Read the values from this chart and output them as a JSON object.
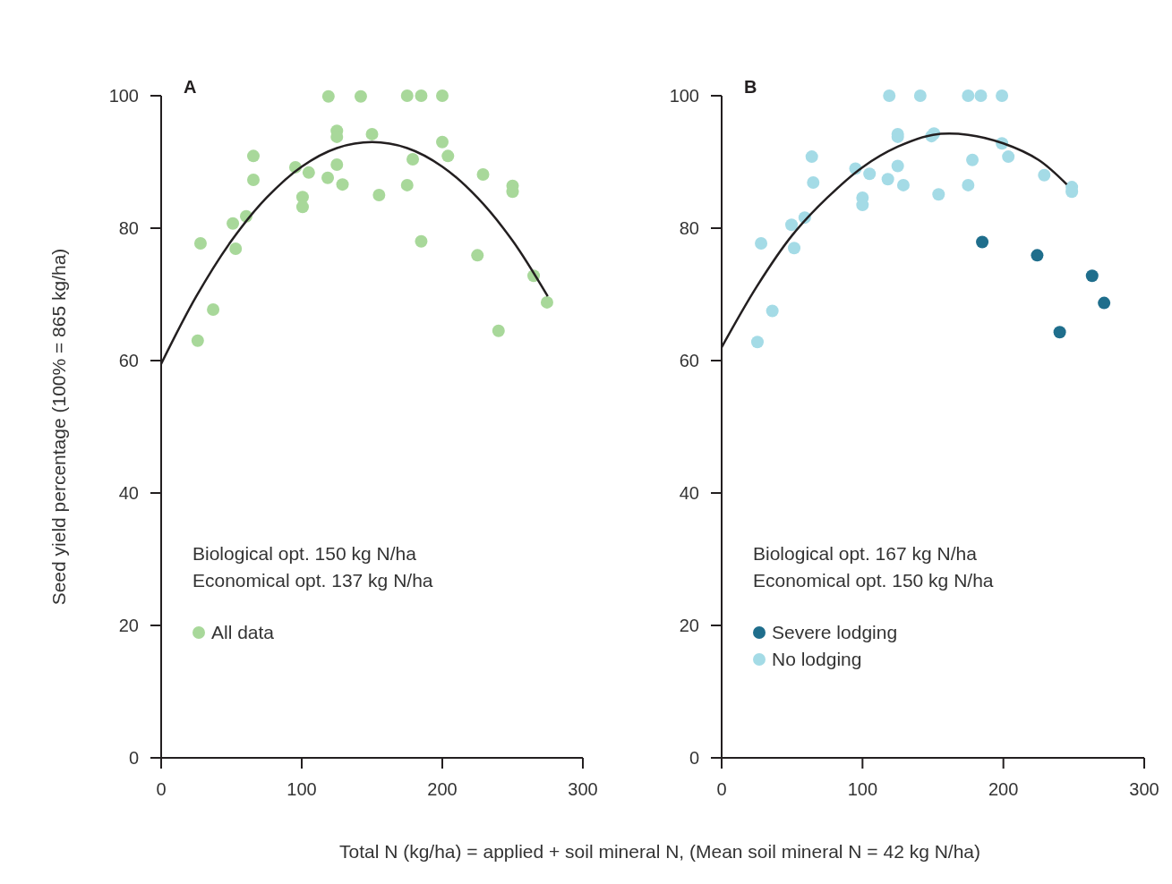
{
  "chart_data": [
    {
      "type": "scatter",
      "title": "A",
      "ylabel": "Seed yield percentage (100% = 865 kg/ha)",
      "xlabel": "Total N (kg/ha) = applied + soil mineral N, (Mean soil mineral N = 42 kg N/ha)",
      "xlim": [
        0,
        300
      ],
      "xticks": [
        0,
        100,
        200,
        300
      ],
      "ylim": [
        0,
        100
      ],
      "yticks": [
        0,
        20,
        40,
        60,
        80,
        100
      ],
      "grid": false,
      "legend": "bottom left",
      "annotations": [
        "Biological opt. 150 kg N/ha",
        "Economical opt. 137 kg N/ha"
      ],
      "series": [
        {
          "name": "All data",
          "color": "#a8d89a",
          "marker": "circle",
          "x": [
            26,
            28,
            37,
            51,
            53,
            60.5,
            65.6,
            65.6,
            95.5,
            100.6,
            100.6,
            105,
            118.5,
            119,
            125,
            125,
            125,
            129,
            142,
            150,
            155,
            175,
            175,
            179,
            185,
            185,
            200,
            200,
            204,
            225,
            229,
            240,
            250,
            250,
            265,
            274.5
          ],
          "values": [
            63,
            77.7,
            67.7,
            80.7,
            76.9,
            81.8,
            90.9,
            87.3,
            89.2,
            84.7,
            83.2,
            88.4,
            87.6,
            99.9,
            94.7,
            93.8,
            89.6,
            86.6,
            99.9,
            94.2,
            85,
            86.5,
            100,
            90.4,
            100,
            78,
            100,
            93,
            90.9,
            75.9,
            88.1,
            64.5,
            86.4,
            85.5,
            72.8,
            68.8
          ]
        },
        {
          "type": "line",
          "color": "#231f20",
          "x": [
            0,
            25,
            50,
            75,
            100,
            125,
            150,
            175,
            200,
            225,
            250,
            275
          ],
          "values": [
            59.5,
            69.7,
            78.1,
            84.6,
            89.3,
            92.1,
            93,
            92.1,
            89.3,
            84.6,
            78.1,
            69.7
          ]
        }
      ]
    },
    {
      "type": "scatter",
      "title": "B",
      "xlim": [
        0,
        300
      ],
      "xticks": [
        0,
        100,
        200,
        300
      ],
      "ylim": [
        0,
        100
      ],
      "yticks": [
        0,
        20,
        40,
        60,
        80,
        100
      ],
      "grid": false,
      "legend": "bottom left",
      "annotations": [
        "Biological opt. 167 kg N/ha",
        "Economical opt. 150 kg N/ha"
      ],
      "series": [
        {
          "name": "Severe lodging",
          "color": "#1f6e8c",
          "marker": "circle",
          "x": [
            185,
            224,
            263,
            271.5,
            240
          ],
          "values": [
            77.9,
            75.9,
            72.8,
            68.7,
            64.3
          ]
        },
        {
          "name": "No lodging",
          "color": "#a4dbe6",
          "marker": "circle",
          "x": [
            25.4,
            28,
            36,
            49.6,
            51.5,
            59,
            64,
            65,
            95,
            100,
            100,
            105,
            118,
            119,
            125,
            125,
            125,
            129,
            141,
            149,
            150.7,
            154,
            175,
            175,
            178,
            184,
            199,
            199,
            203.5,
            229,
            248.6,
            248.6
          ],
          "values": [
            62.8,
            77.7,
            67.5,
            80.5,
            77,
            81.6,
            90.8,
            86.9,
            89,
            84.6,
            83.5,
            88.2,
            87.4,
            100,
            94.2,
            93.8,
            89.4,
            86.5,
            100,
            93.9,
            94.3,
            85.1,
            100,
            86.5,
            90.3,
            100,
            100,
            92.8,
            90.8,
            88,
            86.2,
            85.5
          ]
        },
        {
          "type": "line",
          "color": "#231f20",
          "x": [
            0,
            25,
            50,
            75,
            100,
            125,
            150,
            175,
            200,
            225,
            245
          ],
          "values": [
            62,
            71.2,
            78.9,
            84.6,
            89.2,
            92.3,
            94.1,
            94.1,
            92.8,
            90.3,
            86.6
          ]
        }
      ]
    }
  ]
}
